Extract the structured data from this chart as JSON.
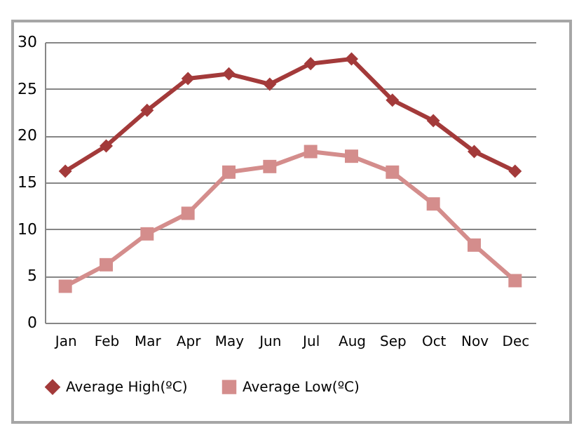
{
  "chart_data": {
    "type": "line",
    "categories": [
      "Jan",
      "Feb",
      "Mar",
      "Apr",
      "May",
      "Jun",
      "Jul",
      "Aug",
      "Sep",
      "Oct",
      "Nov",
      "Dec"
    ],
    "series": [
      {
        "name": "Average High(ºC)",
        "color": "#a33a3a",
        "marker": "diamond",
        "values": [
          16.2,
          18.9,
          22.7,
          26.1,
          26.6,
          25.5,
          27.7,
          28.2,
          23.8,
          21.6,
          18.3,
          16.2
        ]
      },
      {
        "name": "Average Low(ºC)",
        "color": "#d48d8c",
        "marker": "square",
        "values": [
          3.9,
          6.2,
          9.5,
          11.7,
          16.1,
          16.7,
          18.3,
          17.8,
          16.1,
          12.7,
          8.3,
          4.5
        ]
      }
    ],
    "ylim": [
      0,
      30
    ],
    "yticks": [
      0,
      5,
      10,
      15,
      20,
      25,
      30
    ],
    "grid": "y",
    "legend": "bottom"
  }
}
